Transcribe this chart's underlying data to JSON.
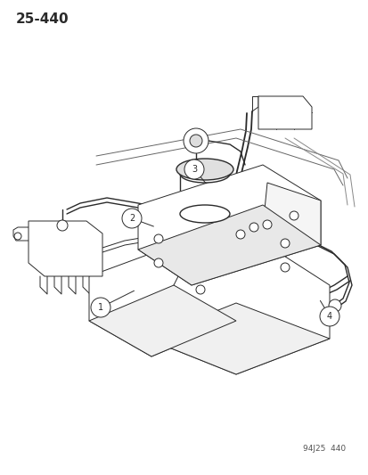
{
  "title": "25-440",
  "footer": "94J25  440",
  "bg_color": "#ffffff",
  "line_color": "#2a2a2a",
  "title_fontsize": 11,
  "footer_fontsize": 6.5,
  "fig_width": 4.14,
  "fig_height": 5.33,
  "dpi": 100
}
